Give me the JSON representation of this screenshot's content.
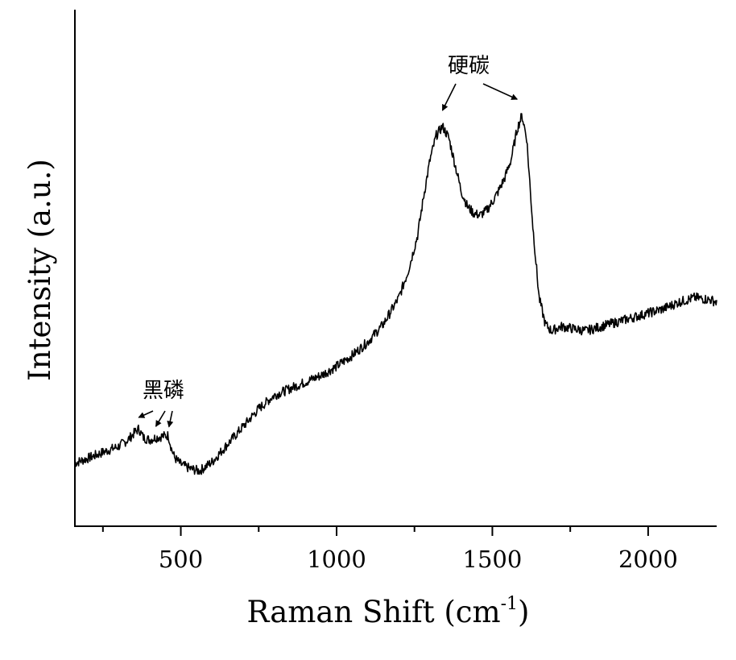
{
  "chart_data": {
    "type": "line",
    "title": "",
    "xlabel": "Raman Shift (cm",
    "xlabel_sup": "-1",
    "xlabel_close": ")",
    "ylabel": "Intensity (a.u.)",
    "xlim": [
      160,
      2220
    ],
    "ylim": [
      0,
      100
    ],
    "xticks": [
      {
        "value": 500,
        "label": "500"
      },
      {
        "value": 1000,
        "label": "1000"
      },
      {
        "value": 1500,
        "label": "1500"
      },
      {
        "value": 2000,
        "label": "2000"
      }
    ],
    "minor_xticks": [
      250,
      750,
      1250,
      1750
    ],
    "yticks_labels": false,
    "grid": false,
    "series": [
      {
        "name": "",
        "color": "#000000",
        "x": [
          160,
          200,
          250,
          300,
          330,
          350,
          365,
          380,
          400,
          420,
          440,
          460,
          470,
          480,
          500,
          530,
          560,
          600,
          650,
          700,
          750,
          800,
          850,
          900,
          950,
          1000,
          1050,
          1100,
          1150,
          1200,
          1230,
          1260,
          1280,
          1300,
          1320,
          1340,
          1360,
          1380,
          1400,
          1420,
          1440,
          1460,
          1480,
          1500,
          1520,
          1540,
          1560,
          1580,
          1595,
          1610,
          1630,
          1650,
          1670,
          1690,
          1720,
          1760,
          1800,
          1850,
          1900,
          1950,
          2000,
          2050,
          2100,
          2150,
          2200,
          2220
        ],
        "y": [
          6.8,
          7.8,
          9.2,
          10.5,
          12,
          13.5,
          14.5,
          12.5,
          12,
          12.5,
          12.8,
          13,
          10,
          8,
          6.5,
          5.5,
          5,
          7,
          11,
          15,
          19,
          22,
          23.5,
          25,
          26.5,
          28.5,
          31,
          34,
          38,
          44,
          50,
          58,
          67,
          75,
          80.5,
          82.5,
          80,
          74,
          68,
          64.5,
          63,
          62.5,
          63.5,
          65.5,
          68,
          71,
          75,
          82,
          85,
          80,
          60,
          44,
          38,
          36.5,
          37.5,
          37,
          36.5,
          37.5,
          38.5,
          39.5,
          40.5,
          41.5,
          43,
          44,
          43.5,
          43
        ]
      }
    ],
    "annotations": [
      {
        "text": "黑磷",
        "arrow_targets": [
          365,
          420,
          462
        ]
      },
      {
        "text": "硬碳",
        "arrow_targets": [
          1340,
          1595
        ]
      }
    ]
  }
}
